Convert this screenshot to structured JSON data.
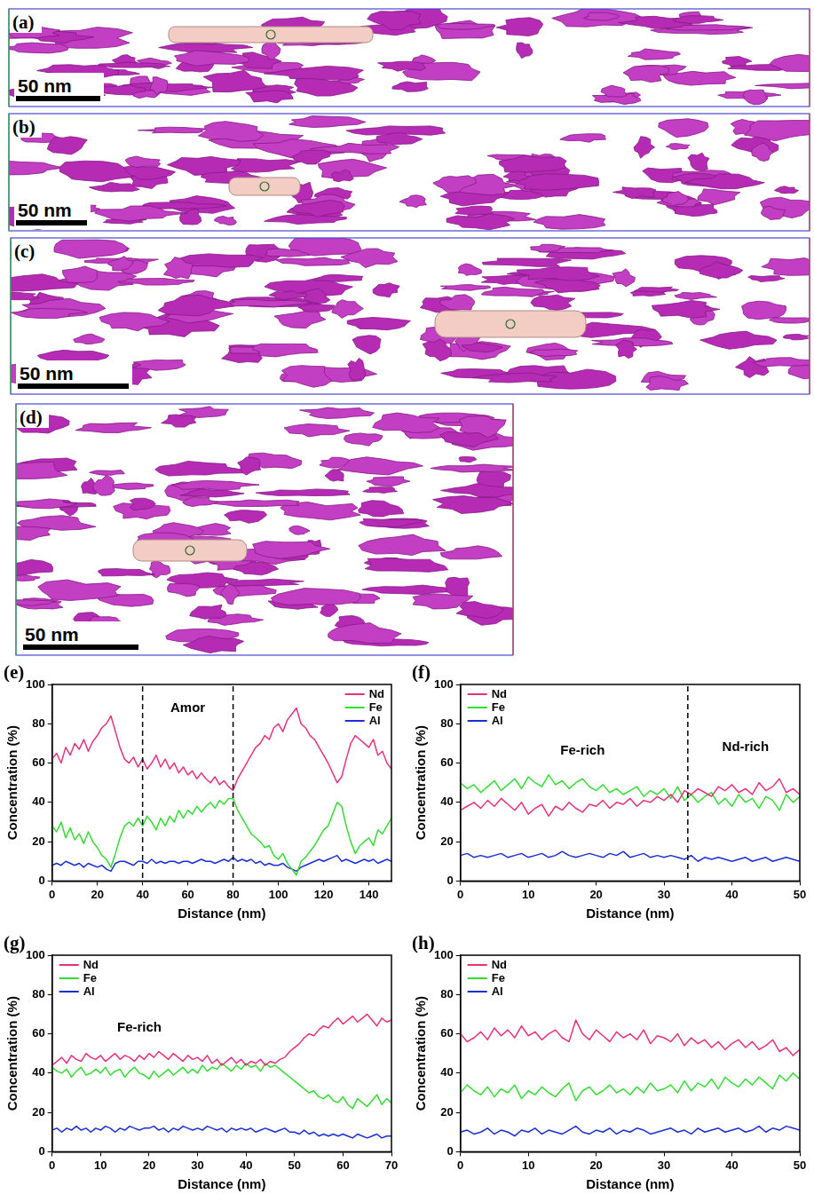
{
  "images": [
    {
      "label": "(a)",
      "scale_bar": "50 nm"
    },
    {
      "label": "(b)",
      "scale_bar": "50 nm"
    },
    {
      "label": "(c)",
      "scale_bar": "50 nm"
    },
    {
      "label": "(d)",
      "scale_bar": "50 nm"
    }
  ],
  "chart_data": [
    {
      "type": "line",
      "label": "(e)",
      "x_label": "Distance (nm)",
      "y_label": "Concentration (%)",
      "xlim": [
        0,
        150
      ],
      "xticks": [
        0,
        20,
        40,
        60,
        80,
        100,
        120,
        140
      ],
      "ylim": [
        0,
        100
      ],
      "yticks": [
        0,
        20,
        40,
        60,
        80,
        100
      ],
      "grid": false,
      "legend": "upper right",
      "annotations": [
        {
          "text": "Amor",
          "x": 60,
          "y": 88
        }
      ],
      "dashed_lines": [
        40,
        80
      ],
      "x": [
        0,
        2,
        4,
        6,
        8,
        10,
        12,
        14,
        16,
        18,
        20,
        22,
        24,
        26,
        28,
        30,
        32,
        34,
        36,
        38,
        40,
        42,
        44,
        46,
        48,
        50,
        52,
        54,
        56,
        58,
        60,
        62,
        64,
        66,
        68,
        70,
        72,
        74,
        76,
        78,
        80,
        82,
        84,
        86,
        88,
        90,
        92,
        94,
        96,
        98,
        100,
        102,
        104,
        106,
        108,
        110,
        112,
        114,
        116,
        118,
        120,
        122,
        124,
        126,
        128,
        130,
        132,
        134,
        136,
        138,
        140,
        142,
        144,
        146,
        148,
        150
      ],
      "series": [
        {
          "name": "Nd",
          "color": "#e8317d",
          "values": [
            62,
            65,
            60,
            68,
            64,
            70,
            67,
            72,
            66,
            71,
            74,
            78,
            80,
            84,
            76,
            68,
            62,
            60,
            63,
            58,
            62,
            57,
            60,
            64,
            58,
            62,
            57,
            60,
            55,
            58,
            54,
            56,
            52,
            55,
            52,
            50,
            53,
            49,
            51,
            48,
            46,
            52,
            56,
            60,
            64,
            68,
            70,
            74,
            72,
            78,
            80,
            76,
            82,
            85,
            88,
            80,
            78,
            74,
            72,
            68,
            64,
            60,
            55,
            50,
            53,
            62,
            70,
            74,
            72,
            70,
            68,
            72,
            64,
            66,
            60,
            57
          ]
        },
        {
          "name": "Fe",
          "color": "#33dd33",
          "values": [
            28,
            25,
            30,
            22,
            27,
            21,
            24,
            19,
            25,
            20,
            17,
            13,
            11,
            7,
            14,
            22,
            28,
            30,
            28,
            32,
            28,
            33,
            30,
            26,
            32,
            28,
            33,
            30,
            36,
            32,
            36,
            34,
            38,
            35,
            38,
            40,
            37,
            41,
            39,
            42,
            42,
            36,
            32,
            28,
            24,
            22,
            20,
            17,
            18,
            13,
            11,
            14,
            9,
            6,
            3,
            10,
            12,
            15,
            18,
            22,
            26,
            28,
            34,
            40,
            38,
            28,
            20,
            14,
            18,
            20,
            22,
            18,
            26,
            24,
            28,
            32
          ]
        },
        {
          "name": "Al",
          "color": "#1a2fd6",
          "values": [
            8,
            9,
            8,
            10,
            9,
            8,
            9,
            7,
            9,
            8,
            7,
            8,
            6,
            5,
            9,
            10,
            10,
            9,
            8,
            10,
            10,
            9,
            11,
            9,
            10,
            9,
            10,
            10,
            9,
            10,
            10,
            9,
            10,
            11,
            10,
            10,
            9,
            10,
            11,
            10,
            12,
            10,
            11,
            10,
            11,
            9,
            10,
            8,
            9,
            8,
            8,
            9,
            7,
            6,
            5,
            7,
            8,
            9,
            10,
            11,
            10,
            11,
            12,
            13,
            10,
            11,
            10,
            9,
            10,
            11,
            10,
            11,
            9,
            10,
            11,
            10
          ]
        }
      ]
    },
    {
      "type": "line",
      "label": "(f)",
      "x_label": "Distance (nm)",
      "y_label": "Concentration (%)",
      "xlim": [
        0,
        50
      ],
      "xticks": [
        0,
        10,
        20,
        30,
        40,
        50
      ],
      "ylim": [
        0,
        100
      ],
      "yticks": [
        0,
        20,
        40,
        60,
        80,
        100
      ],
      "grid": false,
      "legend": "upper left",
      "annotations": [
        {
          "text": "Fe-rich",
          "x": 18,
          "y": 66
        },
        {
          "text": "Nd-rich",
          "x": 42,
          "y": 68
        }
      ],
      "dashed_lines": [
        33.5
      ],
      "x": [
        0,
        1,
        2,
        3,
        4,
        5,
        6,
        7,
        8,
        9,
        10,
        11,
        12,
        13,
        14,
        15,
        16,
        17,
        18,
        19,
        20,
        21,
        22,
        23,
        24,
        25,
        26,
        27,
        28,
        29,
        30,
        31,
        32,
        33,
        34,
        35,
        36,
        37,
        38,
        39,
        40,
        41,
        42,
        43,
        44,
        45,
        46,
        47,
        48,
        49,
        50
      ],
      "series": [
        {
          "name": "Nd",
          "color": "#e8317d",
          "values": [
            36,
            38,
            40,
            37,
            41,
            38,
            42,
            39,
            36,
            40,
            34,
            37,
            39,
            33,
            38,
            36,
            40,
            37,
            35,
            39,
            38,
            41,
            37,
            40,
            39,
            42,
            38,
            41,
            40,
            43,
            41,
            44,
            40,
            46,
            44,
            47,
            45,
            43,
            48,
            46,
            49,
            45,
            47,
            44,
            50,
            46,
            48,
            52,
            45,
            47,
            44
          ]
        },
        {
          "name": "Fe",
          "color": "#33dd33",
          "values": [
            50,
            47,
            49,
            45,
            48,
            51,
            46,
            49,
            52,
            47,
            53,
            50,
            48,
            54,
            49,
            51,
            47,
            50,
            52,
            48,
            46,
            49,
            45,
            47,
            44,
            46,
            48,
            43,
            46,
            44,
            47,
            42,
            48,
            41,
            44,
            40,
            43,
            45,
            39,
            42,
            38,
            44,
            40,
            42,
            37,
            43,
            41,
            36,
            44,
            40,
            43
          ]
        },
        {
          "name": "Al",
          "color": "#1a2fd6",
          "values": [
            13,
            14,
            12,
            13,
            12,
            13,
            14,
            12,
            13,
            14,
            12,
            13,
            14,
            12,
            13,
            15,
            13,
            12,
            13,
            14,
            13,
            12,
            14,
            13,
            15,
            12,
            13,
            14,
            12,
            13,
            12,
            13,
            12,
            11,
            13,
            10,
            12,
            11,
            12,
            11,
            10,
            11,
            12,
            10,
            11,
            12,
            10,
            11,
            12,
            11,
            10
          ]
        }
      ]
    },
    {
      "type": "line",
      "label": "(g)",
      "x_label": "Distance (nm)",
      "y_label": "Concentration (%)",
      "xlim": [
        0,
        70
      ],
      "xticks": [
        0,
        10,
        20,
        30,
        40,
        50,
        60,
        70
      ],
      "ylim": [
        0,
        100
      ],
      "yticks": [
        0,
        20,
        40,
        60,
        80,
        100
      ],
      "grid": false,
      "legend": "upper left",
      "annotations": [
        {
          "text": "Fe-rich",
          "x": 18,
          "y": 63
        }
      ],
      "x": [
        0,
        1,
        2,
        3,
        4,
        5,
        6,
        7,
        8,
        9,
        10,
        11,
        12,
        13,
        14,
        15,
        16,
        17,
        18,
        19,
        20,
        21,
        22,
        23,
        24,
        25,
        26,
        27,
        28,
        29,
        30,
        31,
        32,
        33,
        34,
        35,
        36,
        37,
        38,
        39,
        40,
        41,
        42,
        43,
        44,
        45,
        46,
        47,
        48,
        49,
        50,
        51,
        52,
        53,
        54,
        55,
        56,
        57,
        58,
        59,
        60,
        61,
        62,
        63,
        64,
        65,
        66,
        67,
        68,
        69,
        70
      ],
      "series": [
        {
          "name": "Nd",
          "color": "#e8317d",
          "values": [
            44,
            46,
            48,
            45,
            49,
            47,
            46,
            50,
            48,
            47,
            49,
            46,
            48,
            50,
            47,
            49,
            48,
            46,
            49,
            47,
            50,
            48,
            51,
            49,
            47,
            50,
            48,
            46,
            49,
            47,
            48,
            46,
            49,
            45,
            47,
            44,
            46,
            48,
            45,
            47,
            44,
            46,
            45,
            47,
            44,
            46,
            45,
            47,
            48,
            51,
            53,
            55,
            58,
            60,
            59,
            62,
            64,
            63,
            66,
            68,
            65,
            67,
            69,
            66,
            68,
            70,
            67,
            64,
            68,
            66,
            67
          ]
        },
        {
          "name": "Fe",
          "color": "#33dd33",
          "values": [
            43,
            41,
            40,
            42,
            38,
            41,
            43,
            39,
            40,
            42,
            40,
            43,
            39,
            41,
            42,
            38,
            41,
            43,
            40,
            39,
            37,
            41,
            38,
            40,
            42,
            39,
            41,
            43,
            40,
            42,
            40,
            44,
            41,
            43,
            42,
            45,
            43,
            41,
            44,
            42,
            45,
            43,
            44,
            41,
            45,
            43,
            44,
            42,
            40,
            38,
            36,
            34,
            32,
            30,
            31,
            28,
            27,
            29,
            26,
            25,
            28,
            24,
            22,
            27,
            25,
            23,
            26,
            29,
            24,
            27,
            25
          ]
        },
        {
          "name": "Al",
          "color": "#1a2fd6",
          "values": [
            11,
            12,
            10,
            12,
            11,
            13,
            11,
            12,
            10,
            12,
            11,
            13,
            12,
            10,
            12,
            11,
            13,
            12,
            11,
            12,
            12,
            13,
            11,
            12,
            10,
            12,
            11,
            13,
            12,
            11,
            12,
            11,
            13,
            12,
            11,
            12,
            10,
            12,
            11,
            12,
            11,
            12,
            10,
            11,
            12,
            11,
            10,
            11,
            12,
            10,
            10,
            9,
            11,
            9,
            10,
            8,
            9,
            8,
            9,
            8,
            9,
            8,
            7,
            9,
            8,
            7,
            8,
            9,
            7,
            8,
            8
          ]
        }
      ]
    },
    {
      "type": "line",
      "label": "(h)",
      "x_label": "Distance (nm)",
      "y_label": "Concentration (%)",
      "xlim": [
        0,
        50
      ],
      "xticks": [
        0,
        10,
        20,
        30,
        40,
        50
      ],
      "ylim": [
        0,
        100
      ],
      "yticks": [
        0,
        20,
        40,
        60,
        80,
        100
      ],
      "grid": false,
      "legend": "upper left",
      "x": [
        0,
        1,
        2,
        3,
        4,
        5,
        6,
        7,
        8,
        9,
        10,
        11,
        12,
        13,
        14,
        15,
        16,
        17,
        18,
        19,
        20,
        21,
        22,
        23,
        24,
        25,
        26,
        27,
        28,
        29,
        30,
        31,
        32,
        33,
        34,
        35,
        36,
        37,
        38,
        39,
        40,
        41,
        42,
        43,
        44,
        45,
        46,
        47,
        48,
        49,
        50
      ],
      "series": [
        {
          "name": "Nd",
          "color": "#e8317d",
          "values": [
            60,
            56,
            58,
            61,
            57,
            63,
            59,
            62,
            58,
            64,
            59,
            61,
            57,
            60,
            62,
            58,
            56,
            67,
            60,
            57,
            62,
            59,
            56,
            61,
            58,
            60,
            57,
            62,
            55,
            59,
            58,
            56,
            60,
            54,
            58,
            55,
            57,
            53,
            56,
            52,
            55,
            57,
            53,
            56,
            52,
            54,
            57,
            51,
            53,
            49,
            52
          ]
        },
        {
          "name": "Fe",
          "color": "#33dd33",
          "values": [
            30,
            34,
            31,
            29,
            33,
            28,
            32,
            30,
            34,
            27,
            31,
            29,
            33,
            30,
            28,
            32,
            35,
            26,
            31,
            33,
            29,
            31,
            34,
            30,
            32,
            29,
            33,
            30,
            35,
            31,
            32,
            34,
            30,
            36,
            31,
            35,
            33,
            37,
            32,
            38,
            35,
            33,
            37,
            34,
            38,
            35,
            32,
            39,
            36,
            40,
            37
          ]
        },
        {
          "name": "Al",
          "color": "#1a2fd6",
          "values": [
            10,
            11,
            9,
            10,
            12,
            9,
            11,
            10,
            8,
            11,
            10,
            12,
            9,
            11,
            10,
            9,
            11,
            13,
            10,
            9,
            11,
            10,
            12,
            9,
            11,
            10,
            12,
            11,
            9,
            10,
            11,
            12,
            10,
            11,
            9,
            12,
            10,
            11,
            12,
            10,
            11,
            12,
            10,
            11,
            13,
            10,
            12,
            11,
            13,
            12,
            11
          ]
        }
      ]
    }
  ]
}
